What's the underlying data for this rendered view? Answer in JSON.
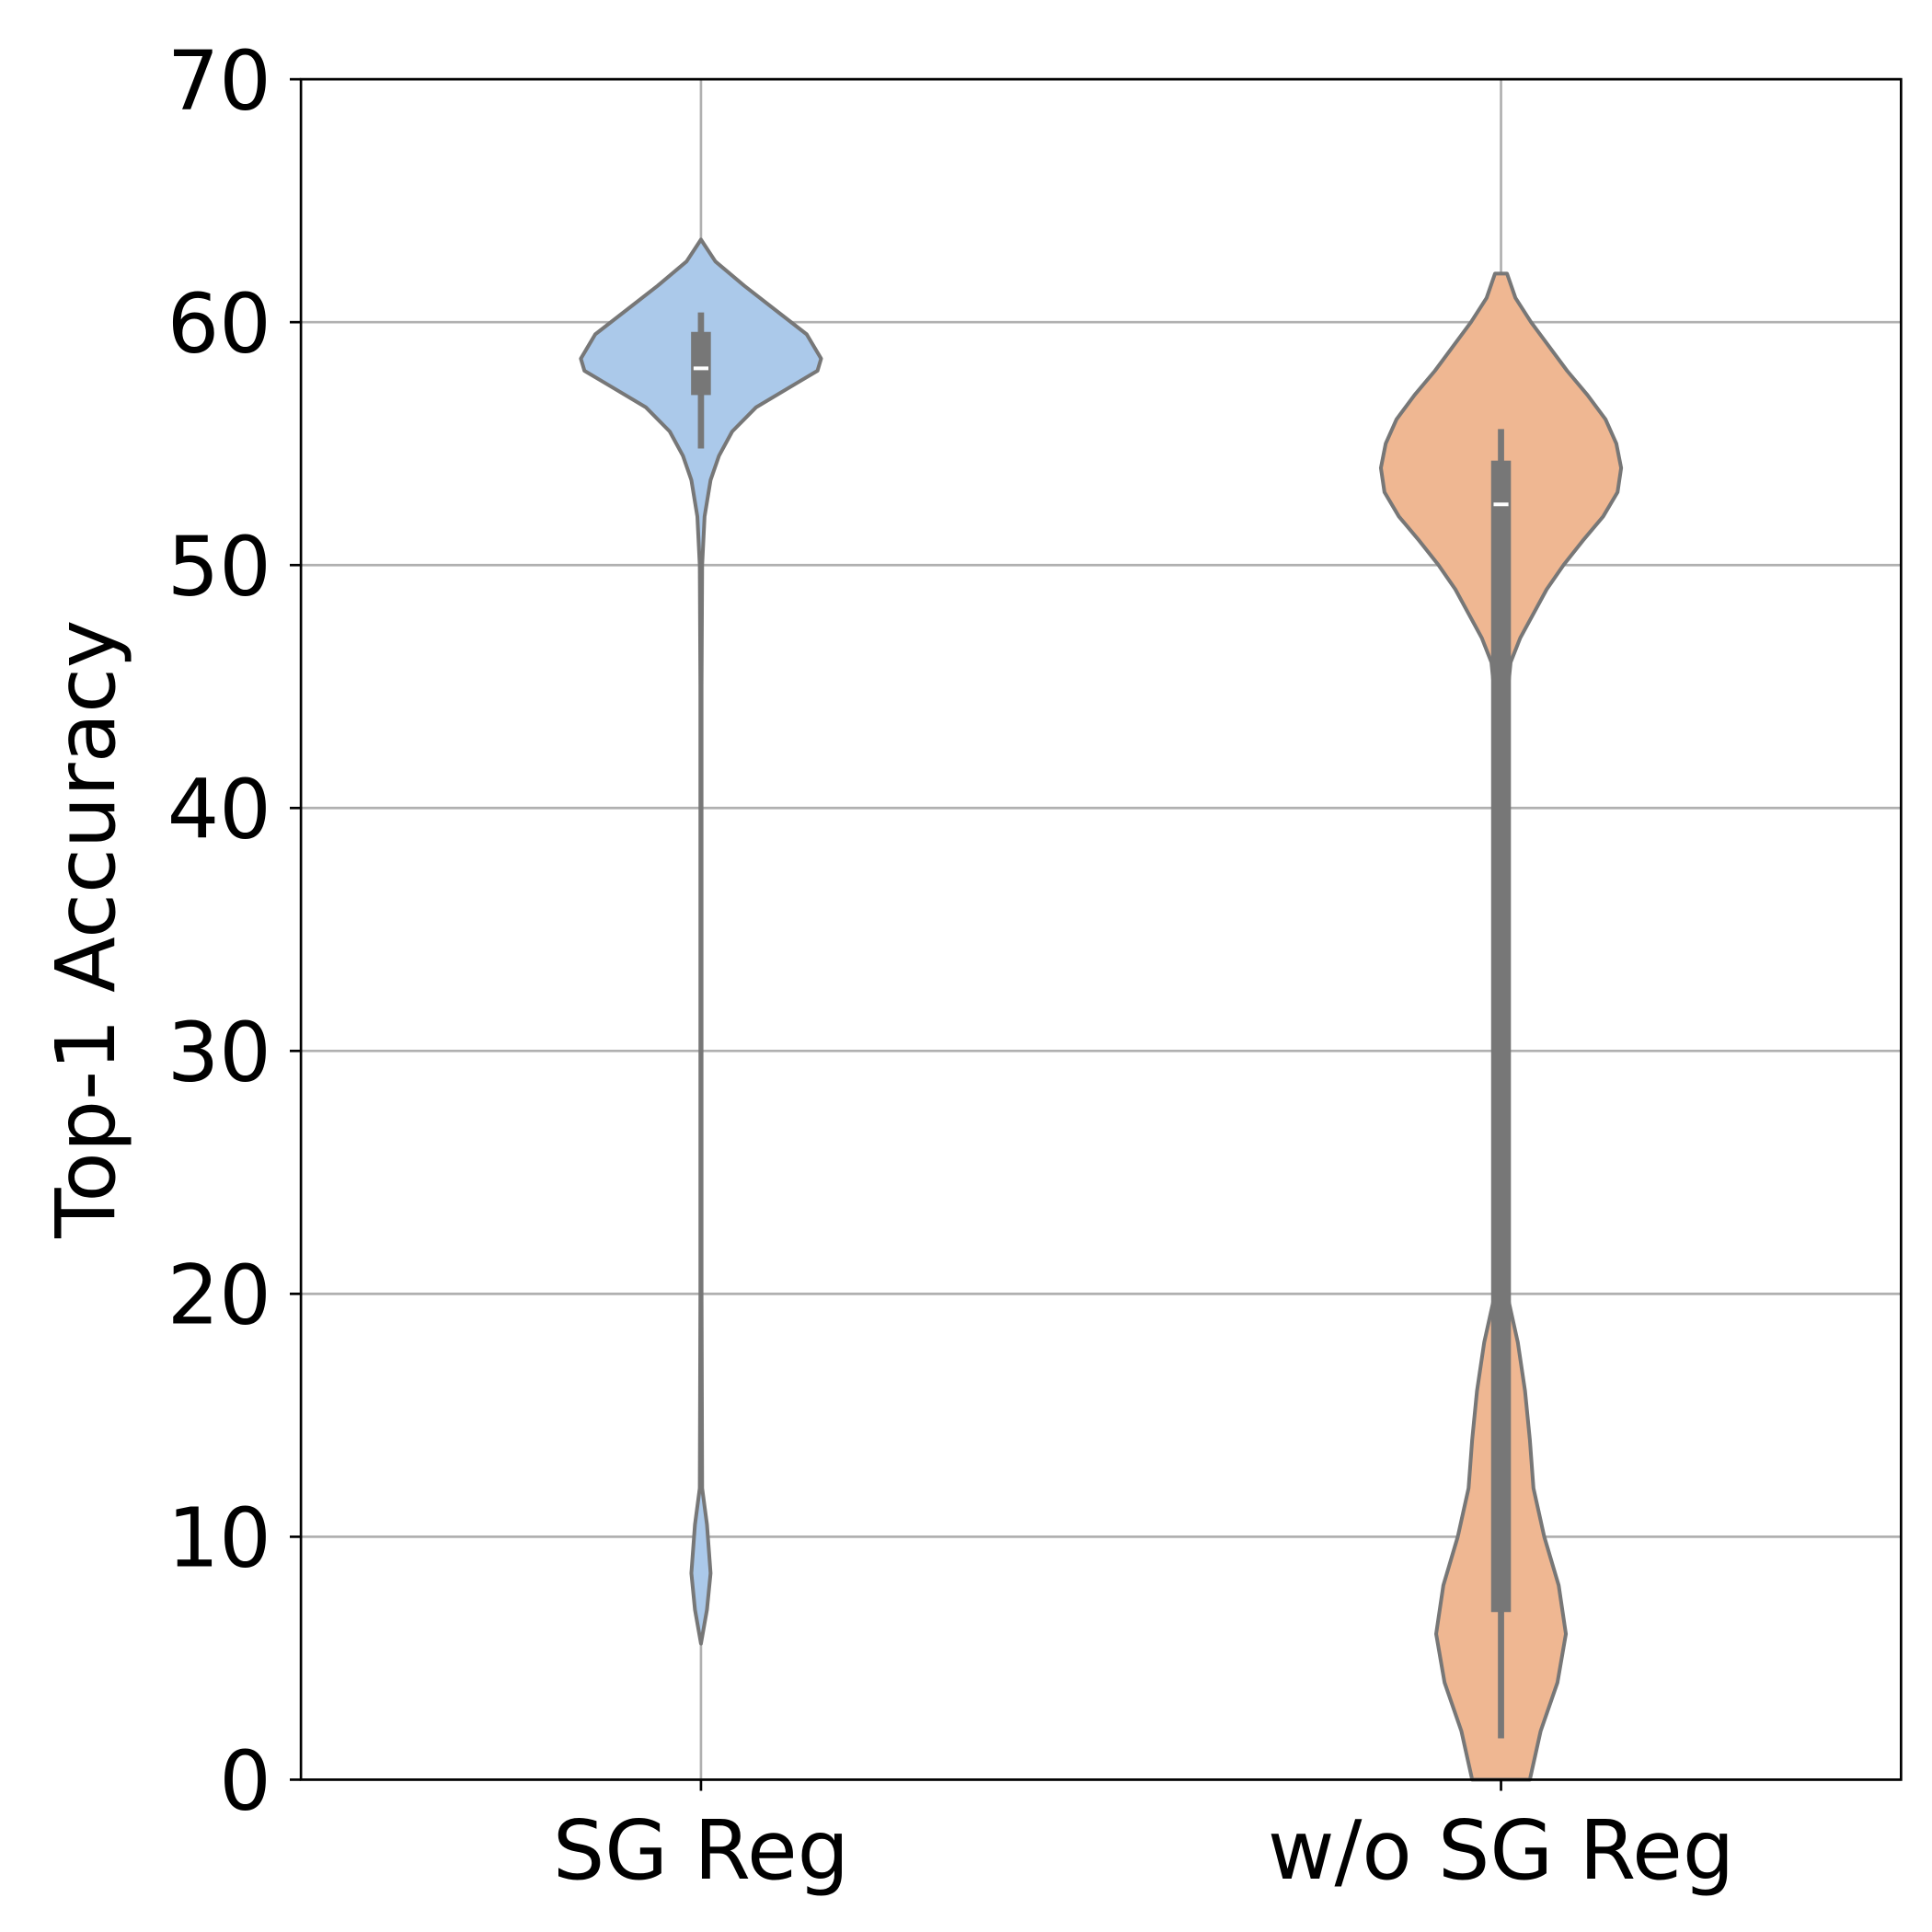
{
  "chart_data": {
    "type": "violin",
    "title": "",
    "xlabel": "",
    "ylabel": "Top-1 Accuracy",
    "ylim": [
      0,
      70
    ],
    "yticks": [
      "0",
      "10",
      "20",
      "30",
      "40",
      "50",
      "60",
      "70"
    ],
    "grid": true,
    "categories": [
      "SG Reg",
      "w/o SG Reg"
    ],
    "colors": {
      "SG Reg": "#abc9ea",
      "w/o SG Reg": "#efb792",
      "edge": "#777777",
      "grid": "#b0b0b0"
    },
    "series": [
      {
        "name": "SG Reg",
        "density": [
          [
            63.4,
            0
          ],
          [
            62.5,
            0.12
          ],
          [
            61.5,
            0.36
          ],
          [
            60.5,
            0.62
          ],
          [
            59.5,
            0.88
          ],
          [
            58.5,
            1.0
          ],
          [
            58,
            0.97
          ],
          [
            57.5,
            0.8
          ],
          [
            56.5,
            0.46
          ],
          [
            55.5,
            0.26
          ],
          [
            54.5,
            0.15
          ],
          [
            53.5,
            0.08
          ],
          [
            52,
            0.03
          ],
          [
            50,
            0.01
          ],
          [
            45,
            0.005
          ],
          [
            20,
            0.005
          ],
          [
            12,
            0.01
          ],
          [
            10.5,
            0.05
          ],
          [
            8.5,
            0.08
          ],
          [
            7,
            0.05
          ],
          [
            5.6,
            0
          ]
        ],
        "box": {
          "whisker_low": 54.8,
          "q1": 57.0,
          "median": 58.1,
          "q3": 59.6,
          "whisker_high": 60.4
        }
      },
      {
        "name": "w/o SG Reg",
        "density": [
          [
            62,
            0.05
          ],
          [
            61,
            0.12
          ],
          [
            60,
            0.25
          ],
          [
            59,
            0.4
          ],
          [
            58,
            0.55
          ],
          [
            57,
            0.72
          ],
          [
            56,
            0.87
          ],
          [
            55,
            0.96
          ],
          [
            54,
            1.0
          ],
          [
            53,
            0.97
          ],
          [
            52,
            0.85
          ],
          [
            51,
            0.68
          ],
          [
            50,
            0.52
          ],
          [
            49,
            0.38
          ],
          [
            48,
            0.27
          ],
          [
            47,
            0.16
          ],
          [
            46,
            0.08
          ],
          [
            44,
            0.04
          ],
          [
            40,
            0.03
          ],
          [
            25,
            0.03
          ],
          [
            20,
            0.05
          ],
          [
            18,
            0.14
          ],
          [
            16,
            0.2
          ],
          [
            14,
            0.24
          ],
          [
            12,
            0.27
          ],
          [
            10,
            0.36
          ],
          [
            8,
            0.48
          ],
          [
            6,
            0.54
          ],
          [
            4,
            0.47
          ],
          [
            2,
            0.33
          ],
          [
            0,
            0.24
          ]
        ],
        "box": {
          "whisker_low": 1.7,
          "q1": 6.9,
          "median": 52.5,
          "q3": 54.3,
          "whisker_high": 55.6
        }
      }
    ]
  }
}
